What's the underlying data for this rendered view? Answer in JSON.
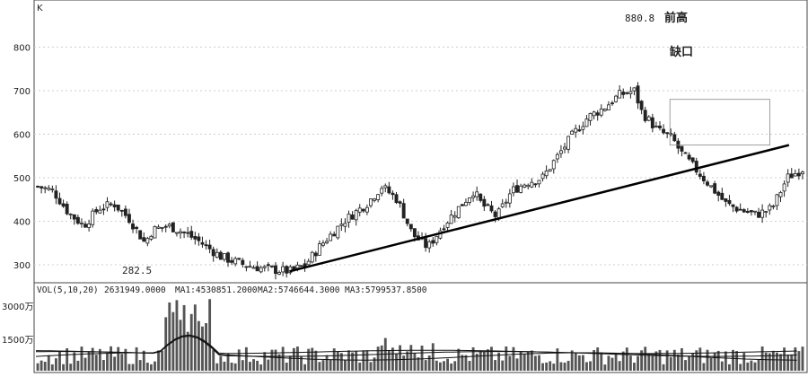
{
  "price_panel": {
    "corner_label": "K",
    "y_ticks": [
      300,
      400,
      500,
      600,
      700,
      800
    ],
    "low_label": "282.5",
    "high_label": "880.8",
    "annotation_high": "前高",
    "annotation_gap": "缺口"
  },
  "volume_panel": {
    "legend": {
      "vol": "VOL(5,10,20)",
      "vol_value": "2631949.0000",
      "ma1": "MA1:4530851.2000",
      "ma2": "MA2:5746644.3000",
      "ma3": "MA3:5799537.8500"
    },
    "y_tick_labels": [
      "3000万",
      "1500万"
    ]
  },
  "colors": {
    "axis": "#444444",
    "grid": "#cfcfcf",
    "candle": "#222222",
    "trendline": "#000000",
    "volume_bar": "#555555"
  },
  "chart_data": {
    "type": "candlestick",
    "price_axis": {
      "ylim": [
        265,
        900
      ],
      "ticks": [
        300,
        400,
        500,
        600,
        700,
        800
      ]
    },
    "volume_axis": {
      "unit": "万",
      "ticks": [
        1500,
        3000
      ]
    },
    "trendline": {
      "from": {
        "bar_index": 0.33,
        "price": 285
      },
      "to": {
        "bar_index": 0.98,
        "price": 575
      }
    },
    "gap_box": {
      "price_top": 680,
      "price_bottom": 575,
      "bar_from": 0.825,
      "bar_to": 0.955
    },
    "close_path": [
      [
        0.0,
        480
      ],
      [
        0.02,
        470
      ],
      [
        0.04,
        420
      ],
      [
        0.06,
        390
      ],
      [
        0.08,
        430
      ],
      [
        0.1,
        440
      ],
      [
        0.12,
        405
      ],
      [
        0.14,
        350
      ],
      [
        0.15,
        380
      ],
      [
        0.17,
        390
      ],
      [
        0.19,
        375
      ],
      [
        0.21,
        355
      ],
      [
        0.24,
        318
      ],
      [
        0.27,
        300
      ],
      [
        0.3,
        290
      ],
      [
        0.33,
        285
      ],
      [
        0.35,
        300
      ],
      [
        0.37,
        345
      ],
      [
        0.4,
        400
      ],
      [
        0.43,
        440
      ],
      [
        0.45,
        480
      ],
      [
        0.47,
        450
      ],
      [
        0.49,
        370
      ],
      [
        0.51,
        340
      ],
      [
        0.53,
        390
      ],
      [
        0.55,
        430
      ],
      [
        0.57,
        470
      ],
      [
        0.58,
        440
      ],
      [
        0.6,
        410
      ],
      [
        0.62,
        470
      ],
      [
        0.64,
        490
      ],
      [
        0.66,
        500
      ],
      [
        0.68,
        550
      ],
      [
        0.7,
        600
      ],
      [
        0.72,
        640
      ],
      [
        0.74,
        660
      ],
      [
        0.76,
        690
      ],
      [
        0.78,
        700
      ],
      [
        0.79,
        650
      ],
      [
        0.81,
        610
      ],
      [
        0.83,
        590
      ],
      [
        0.84,
        560
      ],
      [
        0.86,
        520
      ],
      [
        0.88,
        480
      ],
      [
        0.9,
        440
      ],
      [
        0.92,
        425
      ],
      [
        0.94,
        415
      ],
      [
        0.96,
        430
      ],
      [
        0.98,
        500
      ],
      [
        1.0,
        520
      ]
    ]
  }
}
